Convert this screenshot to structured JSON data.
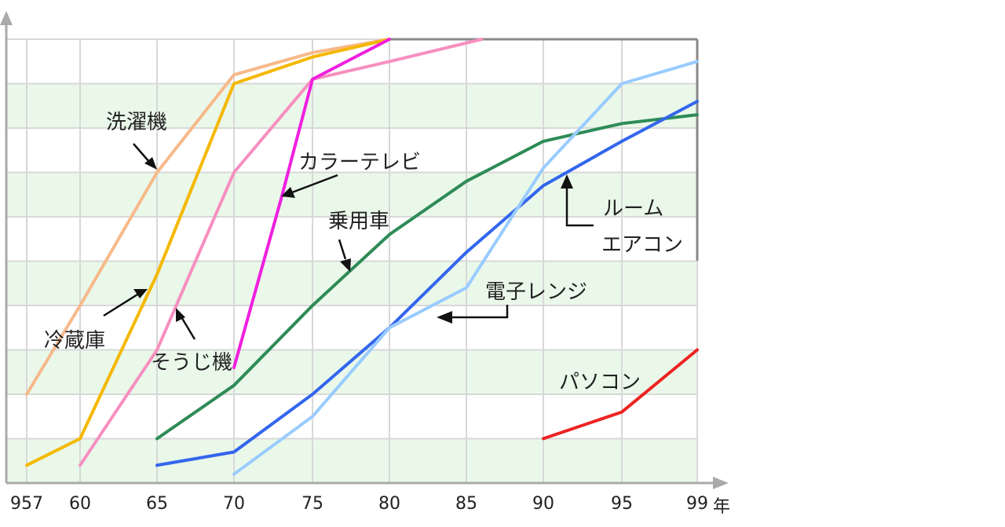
{
  "chart_data": {
    "type": "line",
    "title": "",
    "xlabel": "年",
    "ylabel": "",
    "x_tick_labels": [
      "957",
      "60",
      "65",
      "70",
      "75",
      "80",
      "85",
      "90",
      "95",
      "99"
    ],
    "xlim": [
      1957,
      1999
    ],
    "ylim": [
      0,
      100
    ],
    "grid": true,
    "series": [
      {
        "name": "洗濯機",
        "color": "#f7b98a",
        "points": [
          [
            1957,
            20
          ],
          [
            1960,
            40
          ],
          [
            1965,
            70
          ],
          [
            1970,
            92
          ],
          [
            1975,
            97
          ],
          [
            1980,
            100
          ]
        ]
      },
      {
        "name": "冷蔵庫",
        "color": "#f5b800",
        "points": [
          [
            1957,
            4
          ],
          [
            1960,
            10
          ],
          [
            1965,
            47
          ],
          [
            1970,
            90
          ],
          [
            1975,
            96
          ],
          [
            1980,
            100
          ]
        ]
      },
      {
        "name": "そうじ機",
        "color": "#f78fc0",
        "points": [
          [
            1960,
            4
          ],
          [
            1965,
            30
          ],
          [
            1970,
            70
          ],
          [
            1975,
            91
          ],
          [
            1980,
            95
          ],
          [
            1986,
            100
          ]
        ]
      },
      {
        "name": "カラーテレビ",
        "color": "#f020e0",
        "points": [
          [
            1970,
            26
          ],
          [
            1973,
            64
          ],
          [
            1975,
            91
          ],
          [
            1980,
            100
          ]
        ]
      },
      {
        "name": "乗用車",
        "color": "#2e8b57",
        "points": [
          [
            1965,
            10
          ],
          [
            1970,
            22
          ],
          [
            1975,
            40
          ],
          [
            1980,
            56
          ],
          [
            1985,
            68
          ],
          [
            1990,
            77
          ],
          [
            1995,
            81
          ],
          [
            1999,
            83
          ]
        ]
      },
      {
        "name": "電子レンジ",
        "color": "#3366ee",
        "points": [
          [
            1965,
            4
          ],
          [
            1970,
            7
          ],
          [
            1975,
            20
          ],
          [
            1980,
            35
          ],
          [
            1985,
            52
          ],
          [
            1990,
            67
          ],
          [
            1995,
            77
          ],
          [
            1999,
            86
          ]
        ]
      },
      {
        "name": "ルームエアコン",
        "color": "#99ccff",
        "points": [
          [
            1970,
            2
          ],
          [
            1975,
            15
          ],
          [
            1980,
            35
          ],
          [
            1985,
            44
          ],
          [
            1990,
            71
          ],
          [
            1995,
            90
          ],
          [
            1999,
            95
          ]
        ]
      },
      {
        "name": "パソコン",
        "color": "#ee2222",
        "points": [
          [
            1990,
            10
          ],
          [
            1995,
            16
          ],
          [
            1999,
            30
          ]
        ]
      }
    ],
    "annotations": [
      {
        "text": "洗濯機",
        "series": "洗濯機"
      },
      {
        "text": "冷蔵庫",
        "series": "冷蔵庫"
      },
      {
        "text": "そうじ機",
        "series": "そうじ機"
      },
      {
        "text": "カラーテレビ",
        "series": "カラーテレビ"
      },
      {
        "text": "乗用車",
        "series": "乗用車"
      },
      {
        "text": "電子レンジ",
        "series": "電子レンジ"
      },
      {
        "text": "ルーム",
        "series": "ルームエアコン"
      },
      {
        "text": "エアコン",
        "series": "ルームエアコン"
      },
      {
        "text": "パソコン",
        "series": "パソコン"
      }
    ]
  }
}
